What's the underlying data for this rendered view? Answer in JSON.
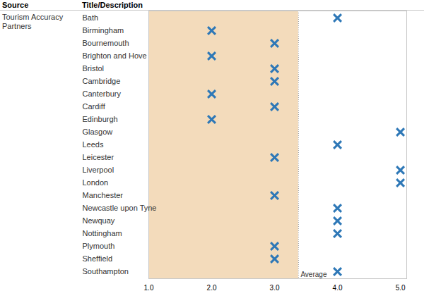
{
  "chart_data": {
    "type": "scatter",
    "orientation": "horizontal",
    "headers": [
      "Source",
      "Title/Description"
    ],
    "group_label": "Tourism Accuracy Partners",
    "categories": [
      "Bath",
      "Birmingham",
      "Bournemouth",
      "Brighton and Hove",
      "Bristol",
      "Cambridge",
      "Canterbury",
      "Cardiff",
      "Edinburgh",
      "Glasgow",
      "Leeds",
      "Leicester",
      "Liverpool",
      "London",
      "Manchester",
      "Newcastle upon Tyne",
      "Newquay",
      "Nottingham",
      "Plymouth",
      "Sheffield",
      "Southampton"
    ],
    "values": [
      4,
      2,
      3,
      2,
      3,
      3,
      2,
      3,
      2,
      5,
      4,
      3,
      5,
      5,
      3,
      4,
      4,
      4,
      3,
      3,
      4
    ],
    "color": "#2e78b7",
    "marker": "x",
    "xlim": [
      1,
      5.1
    ],
    "xticks": [
      {
        "value": 1,
        "label": "1.0"
      },
      {
        "value": 2,
        "label": "2.0"
      },
      {
        "value": 3,
        "label": "3.0"
      },
      {
        "value": 4,
        "label": "4.0"
      },
      {
        "value": 5,
        "label": "5.0"
      }
    ],
    "average": {
      "value": 3.38,
      "label": "Average",
      "color": "#f3dbbb"
    }
  }
}
